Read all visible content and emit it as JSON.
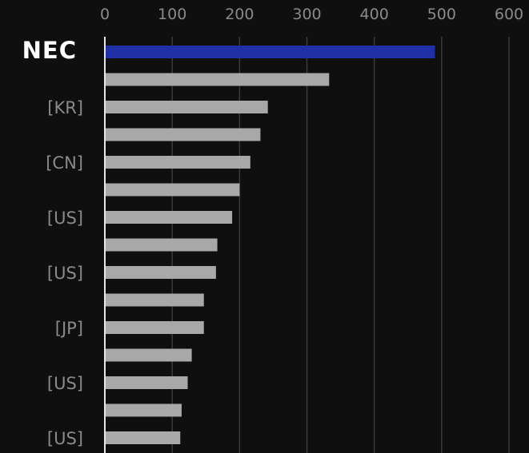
{
  "chart_data": {
    "type": "bar",
    "orientation": "horizontal",
    "logo_label": "NEC",
    "categories": [
      "NEC",
      "",
      "[KR]",
      "",
      "[CN]",
      "",
      "[US]",
      "",
      "[US]",
      "",
      "[JP]",
      "",
      "[US]",
      "",
      "[US]"
    ],
    "values": [
      490,
      333,
      242,
      231,
      216,
      200,
      189,
      167,
      165,
      147,
      147,
      129,
      123,
      114,
      112
    ],
    "highlight_index": 0,
    "xlim": [
      0,
      600
    ],
    "xticks": [
      0,
      100,
      200,
      300,
      400,
      500,
      600
    ],
    "grid": true,
    "axis_position": "top",
    "title": "",
    "xlabel": "",
    "ylabel": ""
  },
  "colors": {
    "background": "#0f0f0f",
    "highlight_bar": "#1f2fa6",
    "bar": "#a8a8a8",
    "grid": "#3a3a3a",
    "axis_line": "#e6e6e6",
    "tick_text": "#8a8a8a",
    "category_text": "#8a8a8a",
    "logo_text": "#ffffff"
  }
}
